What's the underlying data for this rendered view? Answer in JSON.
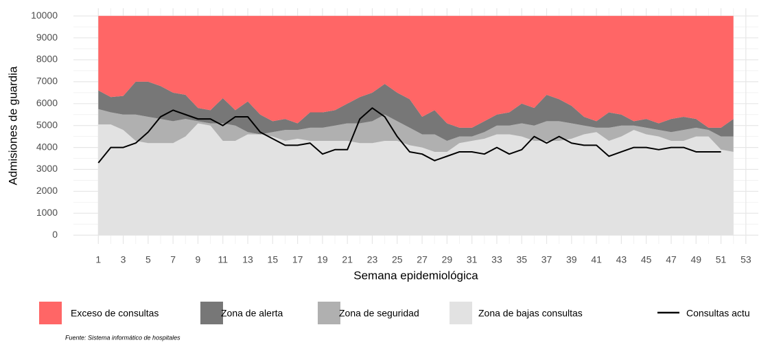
{
  "chart_data": {
    "type": "area",
    "x": [
      1,
      2,
      3,
      4,
      5,
      6,
      7,
      8,
      9,
      10,
      11,
      12,
      13,
      14,
      15,
      16,
      17,
      18,
      19,
      20,
      21,
      22,
      23,
      24,
      25,
      26,
      27,
      28,
      29,
      30,
      31,
      32,
      33,
      34,
      35,
      36,
      37,
      38,
      39,
      40,
      41,
      42,
      43,
      44,
      45,
      46,
      47,
      48,
      49,
      50,
      51,
      52
    ],
    "xlabel": "Semana epidemiológica",
    "ylabel": "Admisiones de guardia",
    "caption": "Fuente: Sistema informático de hospitales",
    "xlim": [
      -1,
      54
    ],
    "xticks": [
      1,
      3,
      5,
      7,
      9,
      11,
      13,
      15,
      17,
      19,
      21,
      23,
      25,
      27,
      29,
      31,
      33,
      35,
      37,
      39,
      41,
      43,
      45,
      47,
      49,
      51,
      53
    ],
    "ylim": [
      -400,
      10350
    ],
    "yticks": [
      0,
      1000,
      2000,
      3000,
      4000,
      5000,
      6000,
      7000,
      8000,
      9000,
      10000
    ],
    "grid": true,
    "legend": "bottom",
    "series": [
      {
        "name": "Exceso de consultas",
        "color": "#ff6666",
        "kind": "area",
        "values": [
          3400,
          3700,
          3650,
          3000,
          3000,
          3200,
          3500,
          3600,
          4200,
          4300,
          3750,
          4300,
          3900,
          4500,
          4800,
          4700,
          4900,
          4400,
          4400,
          4300,
          4000,
          3700,
          3500,
          3100,
          3500,
          3800,
          4600,
          4300,
          4900,
          5100,
          5100,
          4800,
          4500,
          4400,
          4000,
          4200,
          3600,
          3800,
          4100,
          4600,
          4800,
          4400,
          4500,
          4800,
          4700,
          4900,
          4700,
          4600,
          4700,
          5100,
          5100,
          4700
        ]
      },
      {
        "name": "Zona de alerta",
        "color": "#777777",
        "kind": "area",
        "values": [
          850,
          700,
          850,
          1500,
          1600,
          1500,
          1300,
          1100,
          600,
          600,
          1150,
          700,
          1400,
          900,
          500,
          500,
          300,
          700,
          700,
          700,
          900,
          1200,
          1300,
          1400,
          1300,
          1300,
          800,
          1100,
          800,
          400,
          400,
          500,
          500,
          600,
          900,
          800,
          1200,
          1000,
          800,
          400,
          300,
          700,
          500,
          200,
          400,
          300,
          600,
          600,
          400,
          100,
          400,
          800
        ]
      },
      {
        "name": "Zona de seguridad",
        "color": "#b0b0b0",
        "kind": "area",
        "values": [
          700,
          550,
          700,
          1200,
          1200,
          1100,
          1000,
          800,
          100,
          100,
          800,
          700,
          100,
          0,
          200,
          500,
          400,
          600,
          600,
          700,
          800,
          900,
          1000,
          1200,
          900,
          800,
          600,
          800,
          500,
          300,
          200,
          300,
          400,
          400,
          600,
          700,
          900,
          900,
          700,
          400,
          200,
          600,
          500,
          200,
          300,
          300,
          400,
          500,
          400,
          300,
          600,
          700
        ]
      },
      {
        "name": "Zona de bajas consultas",
        "color": "#e2e2e2",
        "kind": "area",
        "values": [
          5050,
          5050,
          4800,
          4300,
          4200,
          4200,
          4200,
          4500,
          5100,
          5000,
          4300,
          4300,
          4600,
          4600,
          4500,
          4300,
          4400,
          4300,
          4300,
          4300,
          4300,
          4200,
          4200,
          4300,
          4300,
          4100,
          4000,
          3800,
          3800,
          4200,
          4300,
          4400,
          4600,
          4600,
          4500,
          4300,
          4300,
          4300,
          4400,
          4600,
          4700,
          4300,
          4500,
          4800,
          4600,
          4500,
          4300,
          4300,
          4500,
          4500,
          3900,
          3800
        ]
      },
      {
        "name": "Consultas actu",
        "color": "#000000",
        "kind": "line",
        "values": [
          3300,
          4000,
          4000,
          4200,
          4700,
          5400,
          5700,
          5500,
          5300,
          5300,
          5000,
          5400,
          5400,
          4700,
          4400,
          4100,
          4100,
          4200,
          3700,
          3900,
          3900,
          5300,
          5800,
          5400,
          4500,
          3800,
          3700,
          3400,
          3600,
          3800,
          3800,
          3700,
          4000,
          3700,
          3900,
          4500,
          4200,
          4500,
          4200,
          4100,
          4100,
          3600,
          3800,
          4000,
          4000,
          3900,
          4000,
          4000,
          3800,
          3800,
          3800,
          null
        ]
      }
    ]
  }
}
